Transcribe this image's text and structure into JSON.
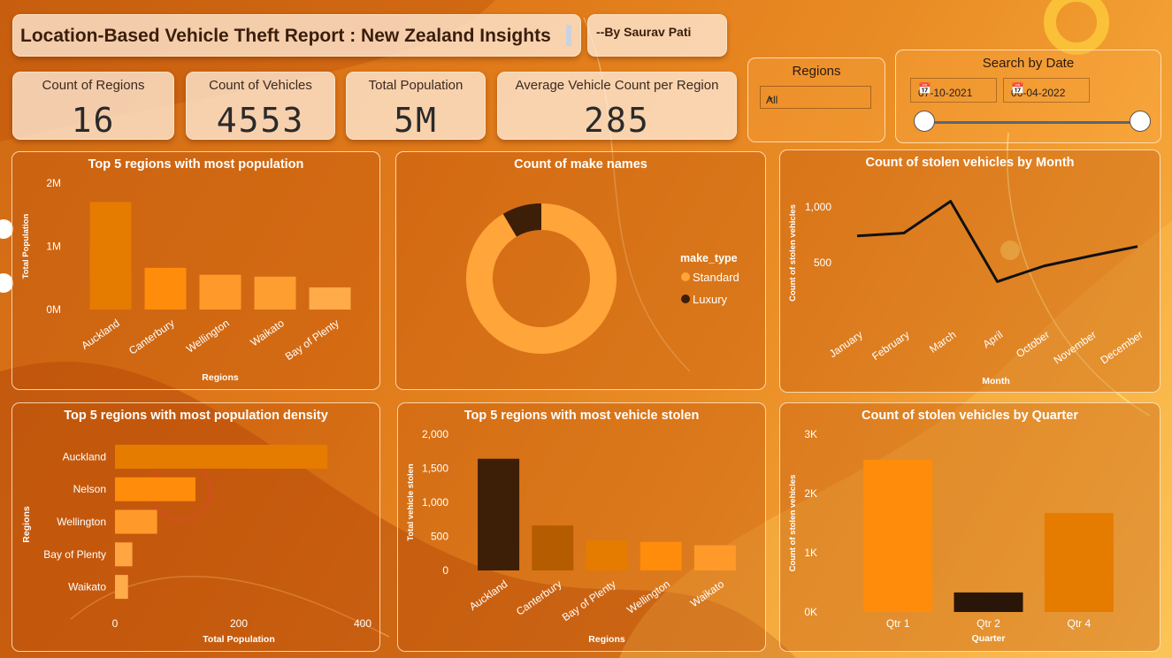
{
  "header": {
    "title": "Location-Based Vehicle Theft Report : New Zealand Insights",
    "author": "--By Saurav Pati"
  },
  "kpis": [
    {
      "label": "Count of Regions",
      "value": "16"
    },
    {
      "label": "Count of Vehicles",
      "value": "4553"
    },
    {
      "label": "Total Population",
      "value": "5M"
    },
    {
      "label": "Average Vehicle Count per Region",
      "value": "285"
    }
  ],
  "filters": {
    "regions_label": "Regions",
    "regions_value": "All",
    "date_label": "Search by Date",
    "date_start": "07-10-2021",
    "date_end": "06-04-2022"
  },
  "colors": {
    "accent": "#e67e00",
    "dark": "#3a1e0a",
    "light_orange": "#ffa53a"
  },
  "chart_data": [
    {
      "id": "population",
      "type": "bar",
      "title": "Top 5 regions with most population",
      "xlabel": "Regions",
      "ylabel": "Total Population",
      "categories": [
        "Auckland",
        "Canterbury",
        "Wellington",
        "Waikato",
        "Bay of Plenty"
      ],
      "values": [
        1700000,
        660000,
        550000,
        520000,
        350000
      ],
      "ylim": [
        0,
        2000000
      ],
      "yticks": [
        {
          "v": 0,
          "label": "0M"
        },
        {
          "v": 1000000,
          "label": "1M"
        },
        {
          "v": 2000000,
          "label": "2M"
        }
      ],
      "colors": [
        "#e57c00",
        "#ff8c0a",
        "#ff9a2a",
        "#ff9e30",
        "#ffab4a"
      ]
    },
    {
      "id": "make",
      "type": "pie",
      "title": "Count of make names",
      "legend_title": "make_type",
      "legend_position": "right",
      "series": [
        {
          "name": "Standard",
          "value": 0.915,
          "color": "#ffa53a"
        },
        {
          "name": "Luxury",
          "value": 0.085,
          "color": "#3d1e07"
        }
      ]
    },
    {
      "id": "month",
      "type": "line",
      "title": "Count of stolen vehicles by Month",
      "xlabel": "Month",
      "ylabel": "Count of stolen vehicles",
      "categories": [
        "January",
        "February",
        "March",
        "April",
        "October",
        "November",
        "December"
      ],
      "values": [
        740,
        765,
        1050,
        330,
        470,
        560,
        645
      ],
      "ylim": [
        0,
        1150
      ],
      "yticks": [
        {
          "v": 500,
          "label": "500"
        },
        {
          "v": 1000,
          "label": "1,000"
        }
      ],
      "color": "#111111"
    },
    {
      "id": "density",
      "type": "bar",
      "orientation": "horizontal",
      "title": "Top 5 regions with most population density",
      "xlabel": "Total Population",
      "ylabel": "Regions",
      "categories": [
        "Auckland",
        "Nelson",
        "Wellington",
        "Bay of Plenty",
        "Waikato"
      ],
      "values": [
        343,
        130,
        68,
        28,
        21
      ],
      "xlim": [
        0,
        400
      ],
      "xticks": [
        {
          "v": 0,
          "label": "0"
        },
        {
          "v": 200,
          "label": "200"
        },
        {
          "v": 400,
          "label": "400"
        }
      ],
      "colors": [
        "#e57c00",
        "#ff8c0a",
        "#ff9a2a",
        "#ffa542",
        "#ffab4a"
      ]
    },
    {
      "id": "stolen",
      "type": "bar",
      "title": "Top 5 regions with most vehicle stolen",
      "xlabel": "Regions",
      "ylabel": "Total vehicle stolen",
      "categories": [
        "Auckland",
        "Canterbury",
        "Bay of Plenty",
        "Wellington",
        "Waikato"
      ],
      "values": [
        1640,
        660,
        440,
        420,
        370
      ],
      "ylim": [
        0,
        2000
      ],
      "yticks": [
        {
          "v": 0,
          "label": "0"
        },
        {
          "v": 500,
          "label": "500"
        },
        {
          "v": 1000,
          "label": "1,000"
        },
        {
          "v": 1500,
          "label": "1,500"
        },
        {
          "v": 2000,
          "label": "2,000"
        }
      ],
      "colors": [
        "#3d1e07",
        "#b55c00",
        "#e57c00",
        "#ff8c0a",
        "#ff9a2a"
      ]
    },
    {
      "id": "quarter",
      "type": "bar",
      "title": "Count of stolen vehicles by Quarter",
      "xlabel": "Quarter",
      "ylabel": "Count of stolen vehicles",
      "categories": [
        "Qtr 1",
        "Qtr 2",
        "Qtr 4"
      ],
      "values": [
        2570,
        330,
        1670
      ],
      "ylim": [
        0,
        3000
      ],
      "yticks": [
        {
          "v": 0,
          "label": "0K"
        },
        {
          "v": 1000,
          "label": "1K"
        },
        {
          "v": 2000,
          "label": "2K"
        },
        {
          "v": 3000,
          "label": "3K"
        }
      ],
      "colors": [
        "#ff8c0a",
        "#2a1608",
        "#e57c00"
      ]
    }
  ]
}
